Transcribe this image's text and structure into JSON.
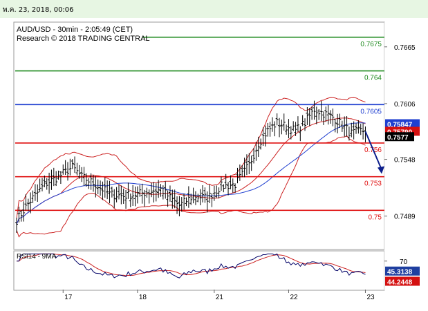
{
  "header": {
    "timestamp": "พ.ค. 23, 2018, 00:06"
  },
  "chart_data": [
    {
      "type": "line",
      "title": "AUD/USD - 30min - 2:05:49 (CET)",
      "subtitle": "Research © 2018 TRADING CENTRAL",
      "ylim": [
        0.7455,
        0.769
      ],
      "y_ticks": [
        "0.7665",
        "0.7606",
        "0.7548",
        "0.7489"
      ],
      "y_tick_values": [
        0.7665,
        0.7606,
        0.7548,
        0.7489
      ],
      "x_tick_labels": [
        "17",
        "18",
        "21",
        "22",
        "23"
      ],
      "x_tick_index": [
        20,
        52,
        85,
        117,
        150
      ],
      "bar_count": 158,
      "levels": [
        {
          "label": "0.7675",
          "value": 0.7675,
          "color": "#1f8a1f"
        },
        {
          "label": "0.764",
          "value": 0.764,
          "color": "#1f8a1f"
        },
        {
          "label": "0.7605",
          "value": 0.7605,
          "color": "#1f3fd0"
        },
        {
          "label": "0.756",
          "value": 0.7565,
          "color": "#e01010"
        },
        {
          "label": "0.753",
          "value": 0.753,
          "color": "#e01010"
        },
        {
          "label": "0.75",
          "value": 0.7495,
          "color": "#e01010"
        }
      ],
      "price_badges": [
        {
          "label": "0.75847",
          "value": 0.75847,
          "color": "#1f3fd0"
        },
        {
          "label": "0.75790",
          "value": 0.7579,
          "color": "#d41010"
        },
        {
          "label": "0.7577",
          "value": 0.7577,
          "color": "#000000"
        }
      ],
      "projection": {
        "from": [
          150,
          0.7577
        ],
        "to": [
          157,
          0.7533
        ]
      },
      "anchors": [
        [
          0,
          0.7485
        ],
        [
          6,
          0.7505
        ],
        [
          12,
          0.7522
        ],
        [
          18,
          0.753
        ],
        [
          24,
          0.754
        ],
        [
          28,
          0.753
        ],
        [
          34,
          0.7522
        ],
        [
          40,
          0.7512
        ],
        [
          46,
          0.751
        ],
        [
          52,
          0.7512
        ],
        [
          58,
          0.7515
        ],
        [
          62,
          0.7517
        ],
        [
          66,
          0.7508
        ],
        [
          70,
          0.75
        ],
        [
          76,
          0.751
        ],
        [
          82,
          0.7508
        ],
        [
          88,
          0.752
        ],
        [
          94,
          0.7522
        ],
        [
          100,
          0.7542
        ],
        [
          104,
          0.7565
        ],
        [
          108,
          0.7578
        ],
        [
          112,
          0.7586
        ],
        [
          116,
          0.7582
        ],
        [
          120,
          0.7578
        ],
        [
          124,
          0.7586
        ],
        [
          128,
          0.76
        ],
        [
          132,
          0.7596
        ],
        [
          136,
          0.7592
        ],
        [
          140,
          0.7584
        ],
        [
          144,
          0.7575
        ],
        [
          148,
          0.7578
        ],
        [
          150,
          0.7577
        ]
      ]
    },
    {
      "type": "line",
      "title": "RSI14 - 9MA",
      "ylim": [
        10,
        90
      ],
      "y_ticks": [
        "70"
      ],
      "y_tick_values": [
        70
      ],
      "series": [
        {
          "name": "RSI14",
          "color": "#000066"
        },
        {
          "name": "9MA",
          "color": "#cc2222"
        }
      ],
      "value_badges": [
        {
          "label": "45.3138",
          "value": 45.3138,
          "color": "#1f3fa0"
        },
        {
          "label": "44.2448",
          "value": 44.2448,
          "color": "#d41010"
        }
      ]
    }
  ]
}
